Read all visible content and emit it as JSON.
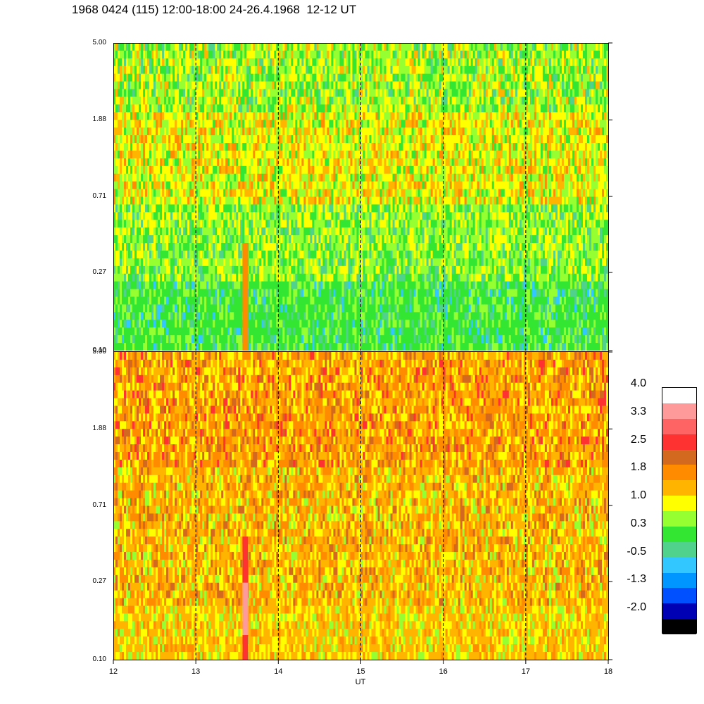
{
  "title": "1968 0424 (115) 12:00-18:00 24-26.4.1968  12-12 UT",
  "chart_data": {
    "type": "heatmap",
    "xlabel": "UT",
    "x_ticks": [
      "12",
      "13",
      "14",
      "15",
      "16",
      "17",
      "18"
    ],
    "xlim": [
      12,
      18
    ],
    "panels": [
      {
        "name": "upper",
        "y_ticks": [
          "5.00",
          "1.88",
          "0.71",
          "0.27",
          "0.10"
        ],
        "ylim": [
          0.1,
          5.0
        ],
        "y_scale": "log",
        "dominant_levels": [
          "0.3",
          "1.0"
        ],
        "vertical_dashed_lines_at": [
          13,
          14,
          15,
          16,
          17
        ]
      },
      {
        "name": "lower",
        "y_ticks": [
          "5.00",
          "1.88",
          "0.71",
          "0.27",
          "0.10"
        ],
        "ylim": [
          0.1,
          5.0
        ],
        "y_scale": "log",
        "dominant_levels": [
          "1.8",
          "2.5"
        ],
        "vertical_dashed_lines_at": [
          13,
          14,
          15,
          16,
          17
        ]
      }
    ],
    "colorbar": {
      "labels": [
        "4.0",
        "3.3",
        "2.5",
        "1.8",
        "1.0",
        "0.3",
        "-0.5",
        "-1.3",
        "-2.0"
      ],
      "range": [
        -2.0,
        4.0
      ],
      "colors": [
        "#ffffff",
        "#ff9a9a",
        "#ff6464",
        "#ff3232",
        "#d2691e",
        "#ff8c00",
        "#ffb400",
        "#ffff00",
        "#96ff32",
        "#32e632",
        "#50d28c",
        "#32c8ff",
        "#0096ff",
        "#0050ff",
        "#0000b4",
        "#000000"
      ]
    }
  }
}
